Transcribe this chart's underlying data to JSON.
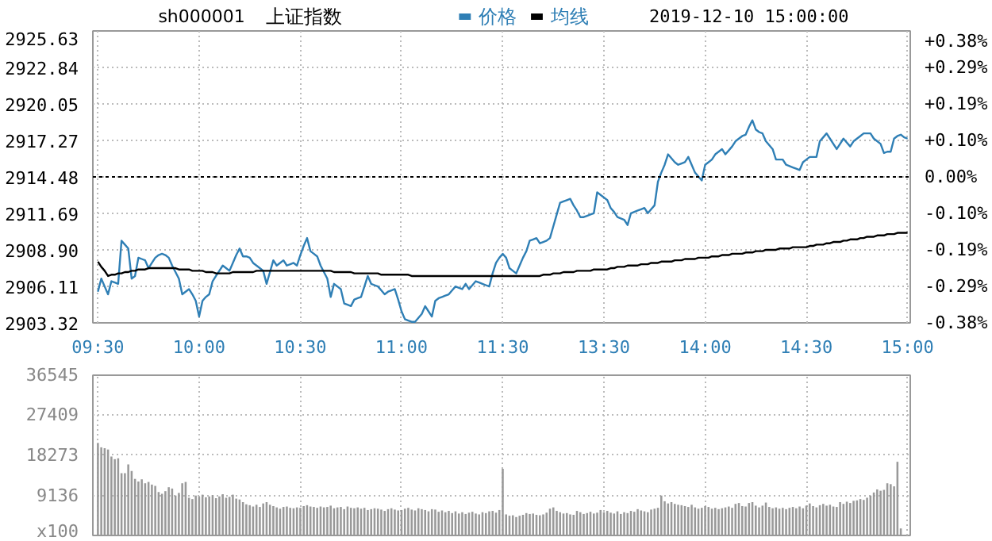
{
  "chart_data": [
    {
      "type": "line",
      "title": "上证指数",
      "subtitle": "sh000001",
      "annotations": [
        "2019-12-10 15:00:00"
      ],
      "categories": [
        "09:30",
        null,
        null,
        null,
        null,
        null,
        null,
        null,
        null,
        null,
        null,
        null,
        null,
        null,
        null,
        null,
        null,
        null,
        null,
        null,
        null,
        null,
        null,
        null,
        null,
        null,
        null,
        null,
        null,
        null,
        "10:00",
        null,
        null,
        null,
        null,
        null,
        null,
        null,
        null,
        null,
        null,
        null,
        null,
        null,
        null,
        null,
        null,
        null,
        null,
        null,
        null,
        null,
        null,
        null,
        null,
        null,
        null,
        null,
        null,
        null,
        "10:30",
        null,
        null,
        null,
        null,
        null,
        null,
        null,
        null,
        null,
        null,
        null,
        null,
        null,
        null,
        null,
        null,
        null,
        null,
        null,
        null,
        null,
        null,
        null,
        null,
        null,
        null,
        null,
        null,
        null,
        "11:00",
        null,
        null,
        null,
        null,
        null,
        null,
        null,
        null,
        null,
        null,
        null,
        null,
        null,
        null,
        null,
        null,
        null,
        null,
        null,
        null,
        null,
        null,
        null,
        null,
        null,
        null,
        null,
        null,
        null,
        "11:30",
        null,
        null,
        null,
        null,
        null,
        null,
        null,
        null,
        null,
        null,
        null,
        null,
        null,
        null,
        null,
        null,
        null,
        null,
        null,
        null,
        null,
        null,
        null,
        null,
        null,
        null,
        null,
        null,
        null,
        "13:30",
        null,
        null,
        null,
        null,
        null,
        null,
        null,
        null,
        null,
        null,
        null,
        null,
        null,
        null,
        null,
        null,
        null,
        null,
        null,
        null,
        null,
        null,
        null,
        null,
        null,
        null,
        null,
        null,
        null,
        "14:00",
        null,
        null,
        null,
        null,
        null,
        null,
        null,
        null,
        null,
        null,
        null,
        null,
        null,
        null,
        null,
        null,
        null,
        null,
        null,
        null,
        null,
        null,
        null,
        null,
        null,
        null,
        null,
        null,
        null,
        "14:30",
        null,
        null,
        null,
        null,
        null,
        null,
        null,
        null,
        null,
        null,
        null,
        null,
        null,
        null,
        null,
        null,
        null,
        null,
        null,
        null,
        null,
        null,
        null,
        null,
        null,
        null,
        null,
        null,
        null,
        "15:00"
      ],
      "ylim": [
        2903.32,
        2925.63
      ],
      "yticks": [
        2903.32,
        2906.11,
        {
          "value": 2908.9,
          "label": "2908.90"
        },
        2911.69,
        2914.48,
        2917.27,
        2920.05,
        2922.84,
        2925.63
      ],
      "y2lim": [
        -0.3826,
        0.3826
      ],
      "y2ticks": [
        {
          "value": -0.3826,
          "label": "-0.38%"
        },
        {
          "value": -0.287,
          "label": "-0.29%"
        },
        {
          "value": -0.1913,
          "label": "-0.19%"
        },
        {
          "value": -0.0957,
          "label": "-0.10%"
        },
        {
          "value": 0,
          "label": "0.00%"
        },
        {
          "value": 0.0957,
          "label": "+0.10%"
        },
        {
          "value": 0.1913,
          "label": "+0.19%"
        },
        {
          "value": 0.287,
          "label": "+0.29%"
        },
        {
          "value": 0.3826,
          "label": "+0.38%"
        }
      ],
      "ref_lines": [
        {
          "axis": "y",
          "value": 2914.48,
          "color": "#000000",
          "line_style": "dashed"
        }
      ],
      "grid": true,
      "legend": "top",
      "series": [
        {
          "name": "价格",
          "color": "#2f7fb5",
          "values": [
            2905.7,
            2906.7,
            2906.1,
            2905.5,
            2906.5,
            2906.4,
            2906.3,
            2909.6,
            2909.3,
            2909.0,
            2906.7,
            2906.9,
            2908.3,
            2908.2,
            2908.1,
            2907.5,
            2907.9,
            2908.3,
            2908.5,
            2908.6,
            2908.5,
            2908.3,
            2907.7,
            2907.2,
            2906.7,
            2905.5,
            2905.7,
            2905.9,
            2905.5,
            2905.0,
            2903.8,
            2905.0,
            2905.3,
            2905.5,
            2906.5,
            2906.9,
            2907.3,
            2907.7,
            2907.5,
            2907.3,
            2907.9,
            2908.5,
            2909.0,
            2908.4,
            2908.4,
            2908.3,
            2907.9,
            2907.7,
            2907.5,
            2907.3,
            2906.3,
            2907.2,
            2908.1,
            2907.7,
            2907.9,
            2908.1,
            2907.7,
            2907.8,
            2907.9,
            2907.7,
            2908.5,
            2909.2,
            2909.8,
            2908.8,
            2908.6,
            2908.4,
            2907.7,
            2907.2,
            2906.7,
            2905.3,
            2906.3,
            2906.1,
            2905.9,
            2904.8,
            2904.7,
            2904.6,
            2905.1,
            2905.2,
            2905.3,
            2906.1,
            2906.9,
            2906.3,
            2906.2,
            2906.1,
            2905.8,
            2905.5,
            2905.7,
            2905.8,
            2905.9,
            2905.1,
            2904.2,
            2903.6,
            2903.5,
            2903.4,
            2903.4,
            2903.7,
            2904.0,
            2904.6,
            2904.2,
            2903.8,
            2905.0,
            2905.2,
            2905.3,
            2905.4,
            2905.5,
            2905.8,
            2906.1,
            2906.0,
            2905.9,
            2906.3,
            2905.9,
            2906.2,
            2906.5,
            2906.4,
            2906.3,
            2906.2,
            2906.1,
            2907.1,
            2907.9,
            2908.3,
            2908.6,
            2908.3,
            2907.5,
            2907.3,
            2907.1,
            2907.7,
            2908.3,
            2908.8,
            2909.6,
            2909.7,
            2909.8,
            2909.4,
            2909.5,
            2909.6,
            2909.8,
            2910.7,
            2911.6,
            2912.5,
            2912.6,
            2912.7,
            2912.8,
            2912.3,
            2911.9,
            2911.4,
            2911.4,
            2911.5,
            2911.6,
            2911.7,
            2913.3,
            2913.1,
            2912.9,
            2912.7,
            2912.1,
            2911.8,
            2911.4,
            2911.3,
            2911.2,
            2910.8,
            2911.7,
            2911.8,
            2911.9,
            2912.0,
            2912.1,
            2911.7,
            2912.0,
            2912.3,
            2914.1,
            2914.8,
            2915.4,
            2916.2,
            2915.9,
            2915.6,
            2915.4,
            2915.5,
            2915.6,
            2916.0,
            2915.4,
            2914.8,
            2914.5,
            2914.2,
            2915.4,
            2915.6,
            2915.8,
            2916.2,
            2916.4,
            2916.6,
            2916.2,
            2916.5,
            2916.8,
            2917.2,
            2917.4,
            2917.6,
            2917.7,
            2918.3,
            2918.8,
            2918.1,
            2917.9,
            2917.8,
            2917.2,
            2916.9,
            2916.6,
            2915.8,
            2915.8,
            2915.8,
            2915.4,
            2915.3,
            2915.2,
            2915.1,
            2915.0,
            2915.6,
            2915.8,
            2916.0,
            2916.0,
            2916.0,
            2917.2,
            2917.5,
            2917.8,
            2917.4,
            2917.0,
            2916.6,
            2917.0,
            2917.4,
            2917.1,
            2916.8,
            2917.2,
            2917.4,
            2917.6,
            2917.8,
            2917.8,
            2917.8,
            2917.4,
            2917.2,
            2917.0,
            2916.3,
            2916.4,
            2916.4,
            2917.4,
            2917.6,
            2917.7,
            2917.5,
            2917.4
          ]
        },
        {
          "name": "均线",
          "color": "#000000",
          "values": [
            2908.0,
            2907.6,
            2907.3,
            2906.9,
            2907.0,
            2907.0,
            2907.1,
            2907.1,
            2907.2,
            2907.2,
            2907.3,
            2907.3,
            2907.4,
            2907.4,
            2907.4,
            2907.5,
            2907.5,
            2907.5,
            2907.5,
            2907.5,
            2907.5,
            2907.5,
            2907.5,
            2907.5,
            2907.4,
            2907.4,
            2907.4,
            2907.4,
            2907.3,
            2907.3,
            2907.3,
            2907.3,
            2907.2,
            2907.2,
            2907.2,
            2907.1,
            2907.1,
            2907.1,
            2907.1,
            2907.1,
            2907.2,
            2907.2,
            2907.2,
            2907.2,
            2907.2,
            2907.2,
            2907.2,
            2907.3,
            2907.3,
            2907.3,
            2907.3,
            2907.3,
            2907.3,
            2907.3,
            2907.3,
            2907.3,
            2907.3,
            2907.3,
            2907.3,
            2907.3,
            2907.3,
            2907.3,
            2907.3,
            2907.3,
            2907.3,
            2907.3,
            2907.3,
            2907.3,
            2907.3,
            2907.3,
            2907.2,
            2907.2,
            2907.2,
            2907.2,
            2907.2,
            2907.2,
            2907.1,
            2907.1,
            2907.1,
            2907.1,
            2907.1,
            2907.1,
            2907.1,
            2907.1,
            2907.0,
            2907.0,
            2907.0,
            2907.0,
            2907.0,
            2907.0,
            2907.0,
            2907.0,
            2907.0,
            2906.9,
            2906.9,
            2906.9,
            2906.9,
            2906.9,
            2906.9,
            2906.9,
            2906.9,
            2906.9,
            2906.9,
            2906.9,
            2906.9,
            2906.9,
            2906.9,
            2906.9,
            2906.9,
            2906.9,
            2906.9,
            2906.9,
            2906.9,
            2906.9,
            2906.9,
            2906.9,
            2906.9,
            2906.9,
            2906.9,
            2906.9,
            2906.9,
            2906.9,
            2906.9,
            2906.9,
            2906.9,
            2906.9,
            2906.9,
            2906.9,
            2906.9,
            2906.9,
            2906.9,
            2906.9,
            2907.0,
            2907.0,
            2907.0,
            2907.1,
            2907.1,
            2907.1,
            2907.2,
            2907.2,
            2907.2,
            2907.2,
            2907.3,
            2907.3,
            2907.3,
            2907.3,
            2907.3,
            2907.4,
            2907.4,
            2907.4,
            2907.4,
            2907.4,
            2907.5,
            2907.5,
            2907.6,
            2907.6,
            2907.6,
            2907.7,
            2907.7,
            2907.7,
            2907.7,
            2907.8,
            2907.8,
            2907.8,
            2907.9,
            2907.9,
            2907.9,
            2908.0,
            2908.0,
            2908.0,
            2908.0,
            2908.1,
            2908.1,
            2908.1,
            2908.2,
            2908.2,
            2908.2,
            2908.2,
            2908.3,
            2908.3,
            2908.3,
            2908.3,
            2908.4,
            2908.4,
            2908.4,
            2908.5,
            2908.5,
            2908.5,
            2908.6,
            2908.6,
            2908.6,
            2908.6,
            2908.7,
            2908.7,
            2908.7,
            2908.8,
            2908.8,
            2908.8,
            2908.9,
            2908.9,
            2908.9,
            2908.9,
            2909.0,
            2909.0,
            2909.0,
            2909.0,
            2909.1,
            2909.1,
            2909.1,
            2909.1,
            2909.1,
            2909.2,
            2909.2,
            2909.3,
            2909.3,
            2909.3,
            2909.4,
            2909.4,
            2909.5,
            2909.5,
            2909.5,
            2909.6,
            2909.6,
            2909.7,
            2909.7,
            2909.7,
            2909.8,
            2909.8,
            2909.9,
            2909.9,
            2909.9,
            2910.0,
            2910.0,
            2910.0,
            2910.1,
            2910.1,
            2910.1,
            2910.2,
            2910.2,
            2910.2,
            2910.2
          ]
        }
      ]
    },
    {
      "type": "bar",
      "tick_labels": "y",
      "categories": [
        null,
        null,
        null,
        null,
        null,
        null,
        null,
        null,
        null,
        null,
        null,
        null,
        null,
        null,
        null,
        null,
        null,
        null,
        null,
        null,
        null,
        null,
        null,
        null,
        null,
        null,
        null,
        null,
        null,
        null,
        null,
        null,
        null,
        null,
        null,
        null,
        null,
        null,
        null,
        null,
        null,
        null,
        null,
        null,
        null,
        null,
        null,
        null,
        null,
        null,
        null,
        null,
        null,
        null,
        null,
        null,
        null,
        null,
        null,
        null,
        null,
        null,
        null,
        null,
        null,
        null,
        null,
        null,
        null,
        null,
        null,
        null,
        null,
        null,
        null,
        null,
        null,
        null,
        null,
        null,
        null,
        null,
        null,
        null,
        null,
        null,
        null,
        null,
        null,
        null,
        null,
        null,
        null,
        null,
        null,
        null,
        null,
        null,
        null,
        null,
        null,
        null,
        null,
        null,
        null,
        null,
        null,
        null,
        null,
        null,
        null,
        null,
        null,
        null,
        null,
        null,
        null,
        null,
        null,
        null,
        null,
        null,
        null,
        null,
        null,
        null,
        null,
        null,
        null,
        null,
        null,
        null,
        null,
        null,
        null,
        null,
        null,
        null,
        null,
        null,
        null,
        null,
        null,
        null,
        null,
        null,
        null,
        null,
        null,
        null,
        null,
        null,
        null,
        null,
        null,
        null,
        null,
        null,
        null,
        null,
        null,
        null,
        null,
        null,
        null,
        null,
        null,
        null,
        null,
        null,
        null,
        null,
        null,
        null,
        null,
        null,
        null,
        null,
        null,
        null,
        null,
        null,
        null,
        null,
        null,
        null,
        null,
        null,
        null,
        null,
        null,
        null,
        null,
        null,
        null,
        null,
        null,
        null,
        null,
        null,
        null,
        null,
        null,
        null,
        null,
        null,
        null,
        null,
        null,
        null,
        null,
        null,
        null,
        null,
        null,
        null,
        null,
        null,
        null,
        null,
        null,
        null,
        null,
        null,
        null,
        null,
        null,
        null,
        null,
        null,
        null,
        null,
        null,
        null,
        null,
        null,
        null,
        null,
        null,
        null,
        null
      ],
      "ylim": [
        0,
        36545
      ],
      "yticks": [
        {
          "value": 0,
          "label": "x100"
        },
        9136,
        18273,
        27409,
        36545
      ],
      "grid": true,
      "series": [
        {
          "color": "#999999",
          "values": [
            21100,
            20100,
            19900,
            19600,
            18000,
            17400,
            17600,
            14200,
            14200,
            16200,
            14700,
            12900,
            12300,
            12800,
            11900,
            12200,
            11600,
            11300,
            9900,
            9500,
            10100,
            11000,
            10700,
            9100,
            9700,
            11900,
            12200,
            8600,
            8300,
            9100,
            8800,
            9300,
            8700,
            8900,
            9200,
            8500,
            8900,
            9400,
            8600,
            8800,
            9300,
            8400,
            8200,
            7600,
            7100,
            6900,
            6600,
            7000,
            6500,
            7300,
            7600,
            7000,
            6700,
            6400,
            6100,
            6500,
            6600,
            6300,
            6200,
            6400,
            6300,
            6700,
            6900,
            6600,
            6500,
            6300,
            6600,
            6400,
            6500,
            6800,
            6200,
            6400,
            6500,
            6000,
            6600,
            6300,
            6200,
            6400,
            6100,
            6300,
            5800,
            6000,
            6200,
            6100,
            5900,
            5600,
            6000,
            6200,
            5900,
            5700,
            5800,
            6100,
            6300,
            5900,
            5700,
            6200,
            6000,
            5800,
            5500,
            6000,
            5900,
            5400,
            5700,
            5300,
            5600,
            5100,
            5500,
            5000,
            5300,
            4900,
            5200,
            5400,
            5000,
            4800,
            5300,
            5100,
            5500,
            5600,
            5200,
            5800,
            15200,
            4800,
            4500,
            4600,
            4200,
            4500,
            4700,
            5100,
            4900,
            5000,
            4700,
            4600,
            4800,
            5200,
            6100,
            6400,
            5600,
            5300,
            5000,
            5100,
            4800,
            4700,
            5600,
            5300,
            4900,
            5100,
            5400,
            5000,
            5200,
            5800,
            5300,
            5600,
            5200,
            5000,
            5500,
            4900,
            5300,
            5100,
            5600,
            5400,
            6000,
            5700,
            5500,
            5300,
            5900,
            6100,
            6300,
            9100,
            7800,
            7300,
            7600,
            7200,
            7000,
            6900,
            6700,
            6500,
            7000,
            6400,
            6100,
            6300,
            6700,
            6500,
            6100,
            6300,
            6000,
            6200,
            6400,
            6600,
            6300,
            7200,
            7400,
            6700,
            6600,
            7400,
            7600,
            6800,
            6400,
            6800,
            7500,
            6500,
            6200,
            6400,
            6100,
            6300,
            6000,
            6300,
            6500,
            6200,
            6600,
            6200,
            6800,
            7300,
            6700,
            6400,
            6900,
            7200,
            6800,
            7000,
            6600,
            6500,
            7600,
            7200,
            7700,
            7400,
            7900,
            8000,
            8300,
            8100,
            8600,
            9100,
            9800,
            10500,
            10200,
            10400,
            11900,
            11700,
            11200,
            16800,
            1600,
            null,
            null
          ]
        }
      ]
    }
  ]
}
